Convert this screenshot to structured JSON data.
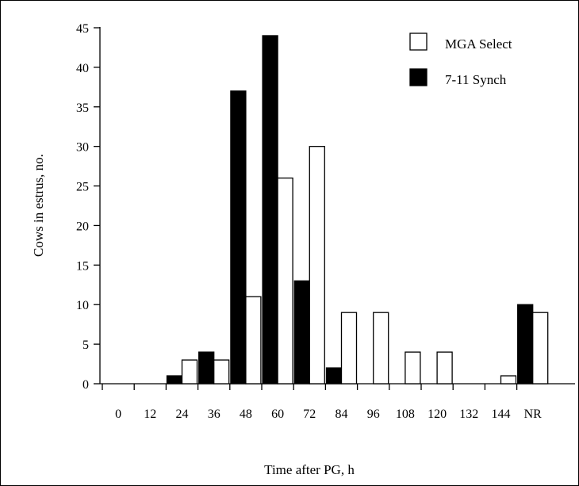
{
  "chart_data": {
    "type": "bar",
    "xlabel": "Time after PG, h",
    "ylabel": "Cows in estrus, no.",
    "ylim": [
      0,
      45
    ],
    "yticks": [
      0,
      5,
      10,
      15,
      20,
      25,
      30,
      35,
      40,
      45
    ],
    "categories": [
      "0",
      "12",
      "24",
      "36",
      "48",
      "60",
      "72",
      "84",
      "96",
      "108",
      "120",
      "132",
      "144",
      "NR"
    ],
    "series": [
      {
        "name": "7-11 Synch",
        "color": "#000000",
        "values": [
          0,
          0,
          1,
          4,
          37,
          44,
          13,
          2,
          0,
          0,
          0,
          0,
          0,
          10
        ]
      },
      {
        "name": "MGA Select",
        "color": "#ffffff",
        "values": [
          0,
          0,
          3,
          3,
          11,
          26,
          30,
          9,
          9,
          4,
          4,
          0,
          1,
          9
        ]
      }
    ],
    "legend": {
      "position": "top-right",
      "items": [
        {
          "label": "MGA Select",
          "color": "#ffffff"
        },
        {
          "label": "7-11 Synch",
          "color": "#000000"
        }
      ]
    },
    "grid": false
  }
}
